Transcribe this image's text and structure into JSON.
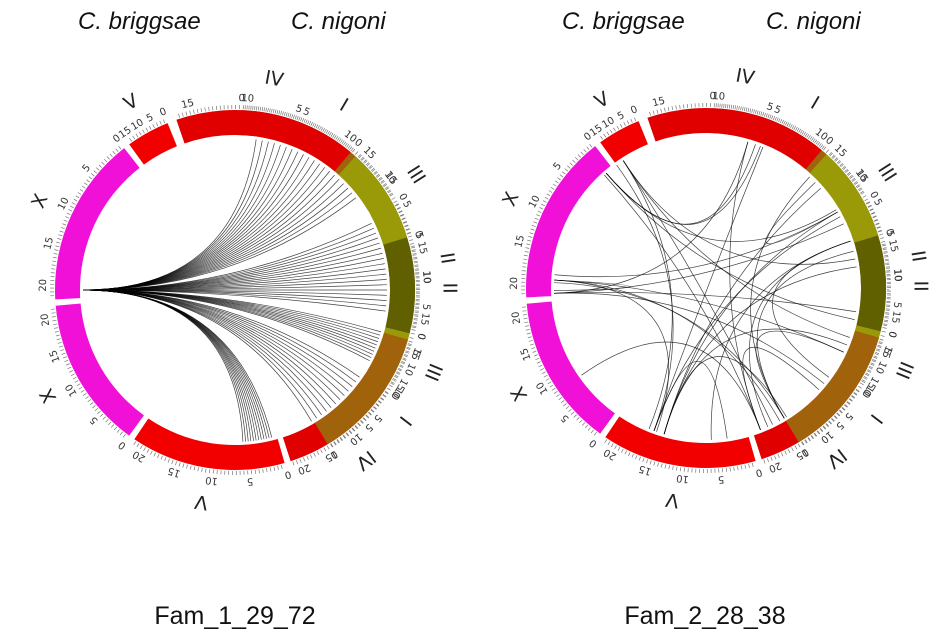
{
  "species_left": "C. briggsae",
  "species_right": "C. nigoni",
  "colors": {
    "I": "#a0620a",
    "II": "#606000",
    "III": "#9a9a08",
    "IV": "#e00000",
    "V": "#f20000",
    "X": "#f010d8",
    "tick": "#777777",
    "link": "#000000"
  },
  "ideogram": {
    "briggsae": [
      {
        "chr": "I",
        "ticks": [
          "0",
          "5",
          "10",
          "15"
        ]
      },
      {
        "chr": "II",
        "ticks": [
          "0",
          "5",
          "10",
          "15"
        ]
      },
      {
        "chr": "III",
        "ticks": [
          "0",
          "5",
          "10",
          "15"
        ]
      },
      {
        "chr": "IV",
        "ticks": [
          "0",
          "5",
          "10",
          "15"
        ]
      },
      {
        "chr": "V",
        "ticks": [
          "0",
          "5",
          "10",
          "15"
        ]
      },
      {
        "chr": "X",
        "ticks": [
          "0",
          "5",
          "10",
          "15",
          "20"
        ]
      }
    ],
    "nigoni": [
      {
        "chr": "X",
        "ticks": [
          "0",
          "5",
          "10",
          "15",
          "20"
        ]
      },
      {
        "chr": "V",
        "ticks": [
          "0",
          "5",
          "10",
          "15",
          "20"
        ]
      },
      {
        "chr": "IV",
        "ticks": [
          "0",
          "5",
          "10",
          "15",
          "20"
        ]
      },
      {
        "chr": "III",
        "ticks": [
          "0",
          "5",
          "10",
          "15"
        ]
      },
      {
        "chr": "II",
        "ticks": [
          "0",
          "5",
          "10",
          "15"
        ]
      },
      {
        "chr": "I",
        "ticks": [
          "0",
          "5",
          "10",
          "15"
        ]
      }
    ]
  },
  "panels": [
    {
      "caption": "Fam_1_29_72",
      "link_count": 72,
      "source": "IV (C. briggsae)",
      "targets": "I, II, III, IV, V (C. nigoni)"
    },
    {
      "caption": "Fam_2_28_38",
      "link_count": 38,
      "source": "II, IV, V, X (C. briggsae)",
      "targets": "I, II, III, IV, V, X (C. nigoni)"
    }
  ]
}
